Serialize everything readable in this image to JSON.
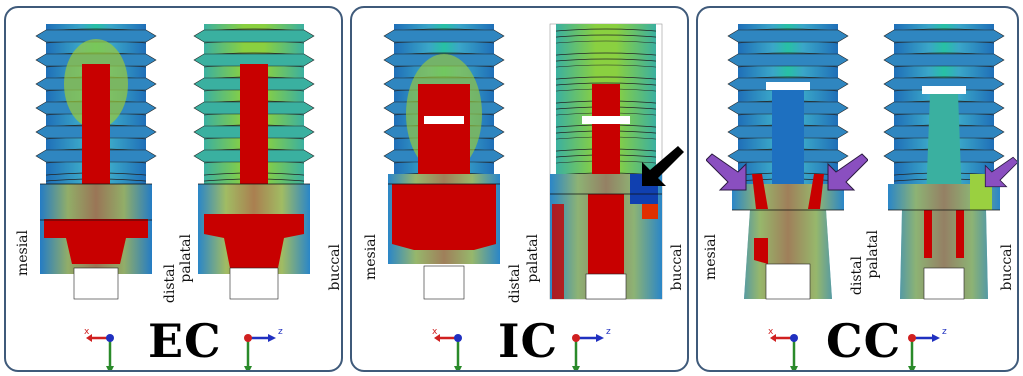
{
  "panels": [
    {
      "id": "EC",
      "label": "EC",
      "left_views": [
        "mesial",
        "distal"
      ],
      "right_views": [
        "palatal",
        "buccal"
      ],
      "left_axis": {
        "h": "x",
        "v": "y"
      },
      "right_axis": {
        "h": "z",
        "v": "y"
      }
    },
    {
      "id": "IC",
      "label": "IC",
      "left_views": [
        "mesial",
        "distal"
      ],
      "right_views": [
        "palatal",
        "buccal"
      ],
      "left_axis": {
        "h": "x",
        "v": "y"
      },
      "right_axis": {
        "h": "z",
        "v": "y"
      }
    },
    {
      "id": "CC",
      "label": "CC",
      "left_views": [
        "mesial",
        "distal"
      ],
      "right_views": [
        "palatal",
        "buccal"
      ],
      "left_axis": {
        "h": "x",
        "v": "y"
      },
      "right_axis": {
        "h": "z",
        "v": "y"
      }
    }
  ],
  "colors": {
    "border": "#3f5a7a",
    "stress_high": "#c80000",
    "stress_mid": "#e8e000",
    "stress_low": "#1560c8",
    "arrow_black": "#000000",
    "arrow_purple": "#8a4fc0"
  }
}
